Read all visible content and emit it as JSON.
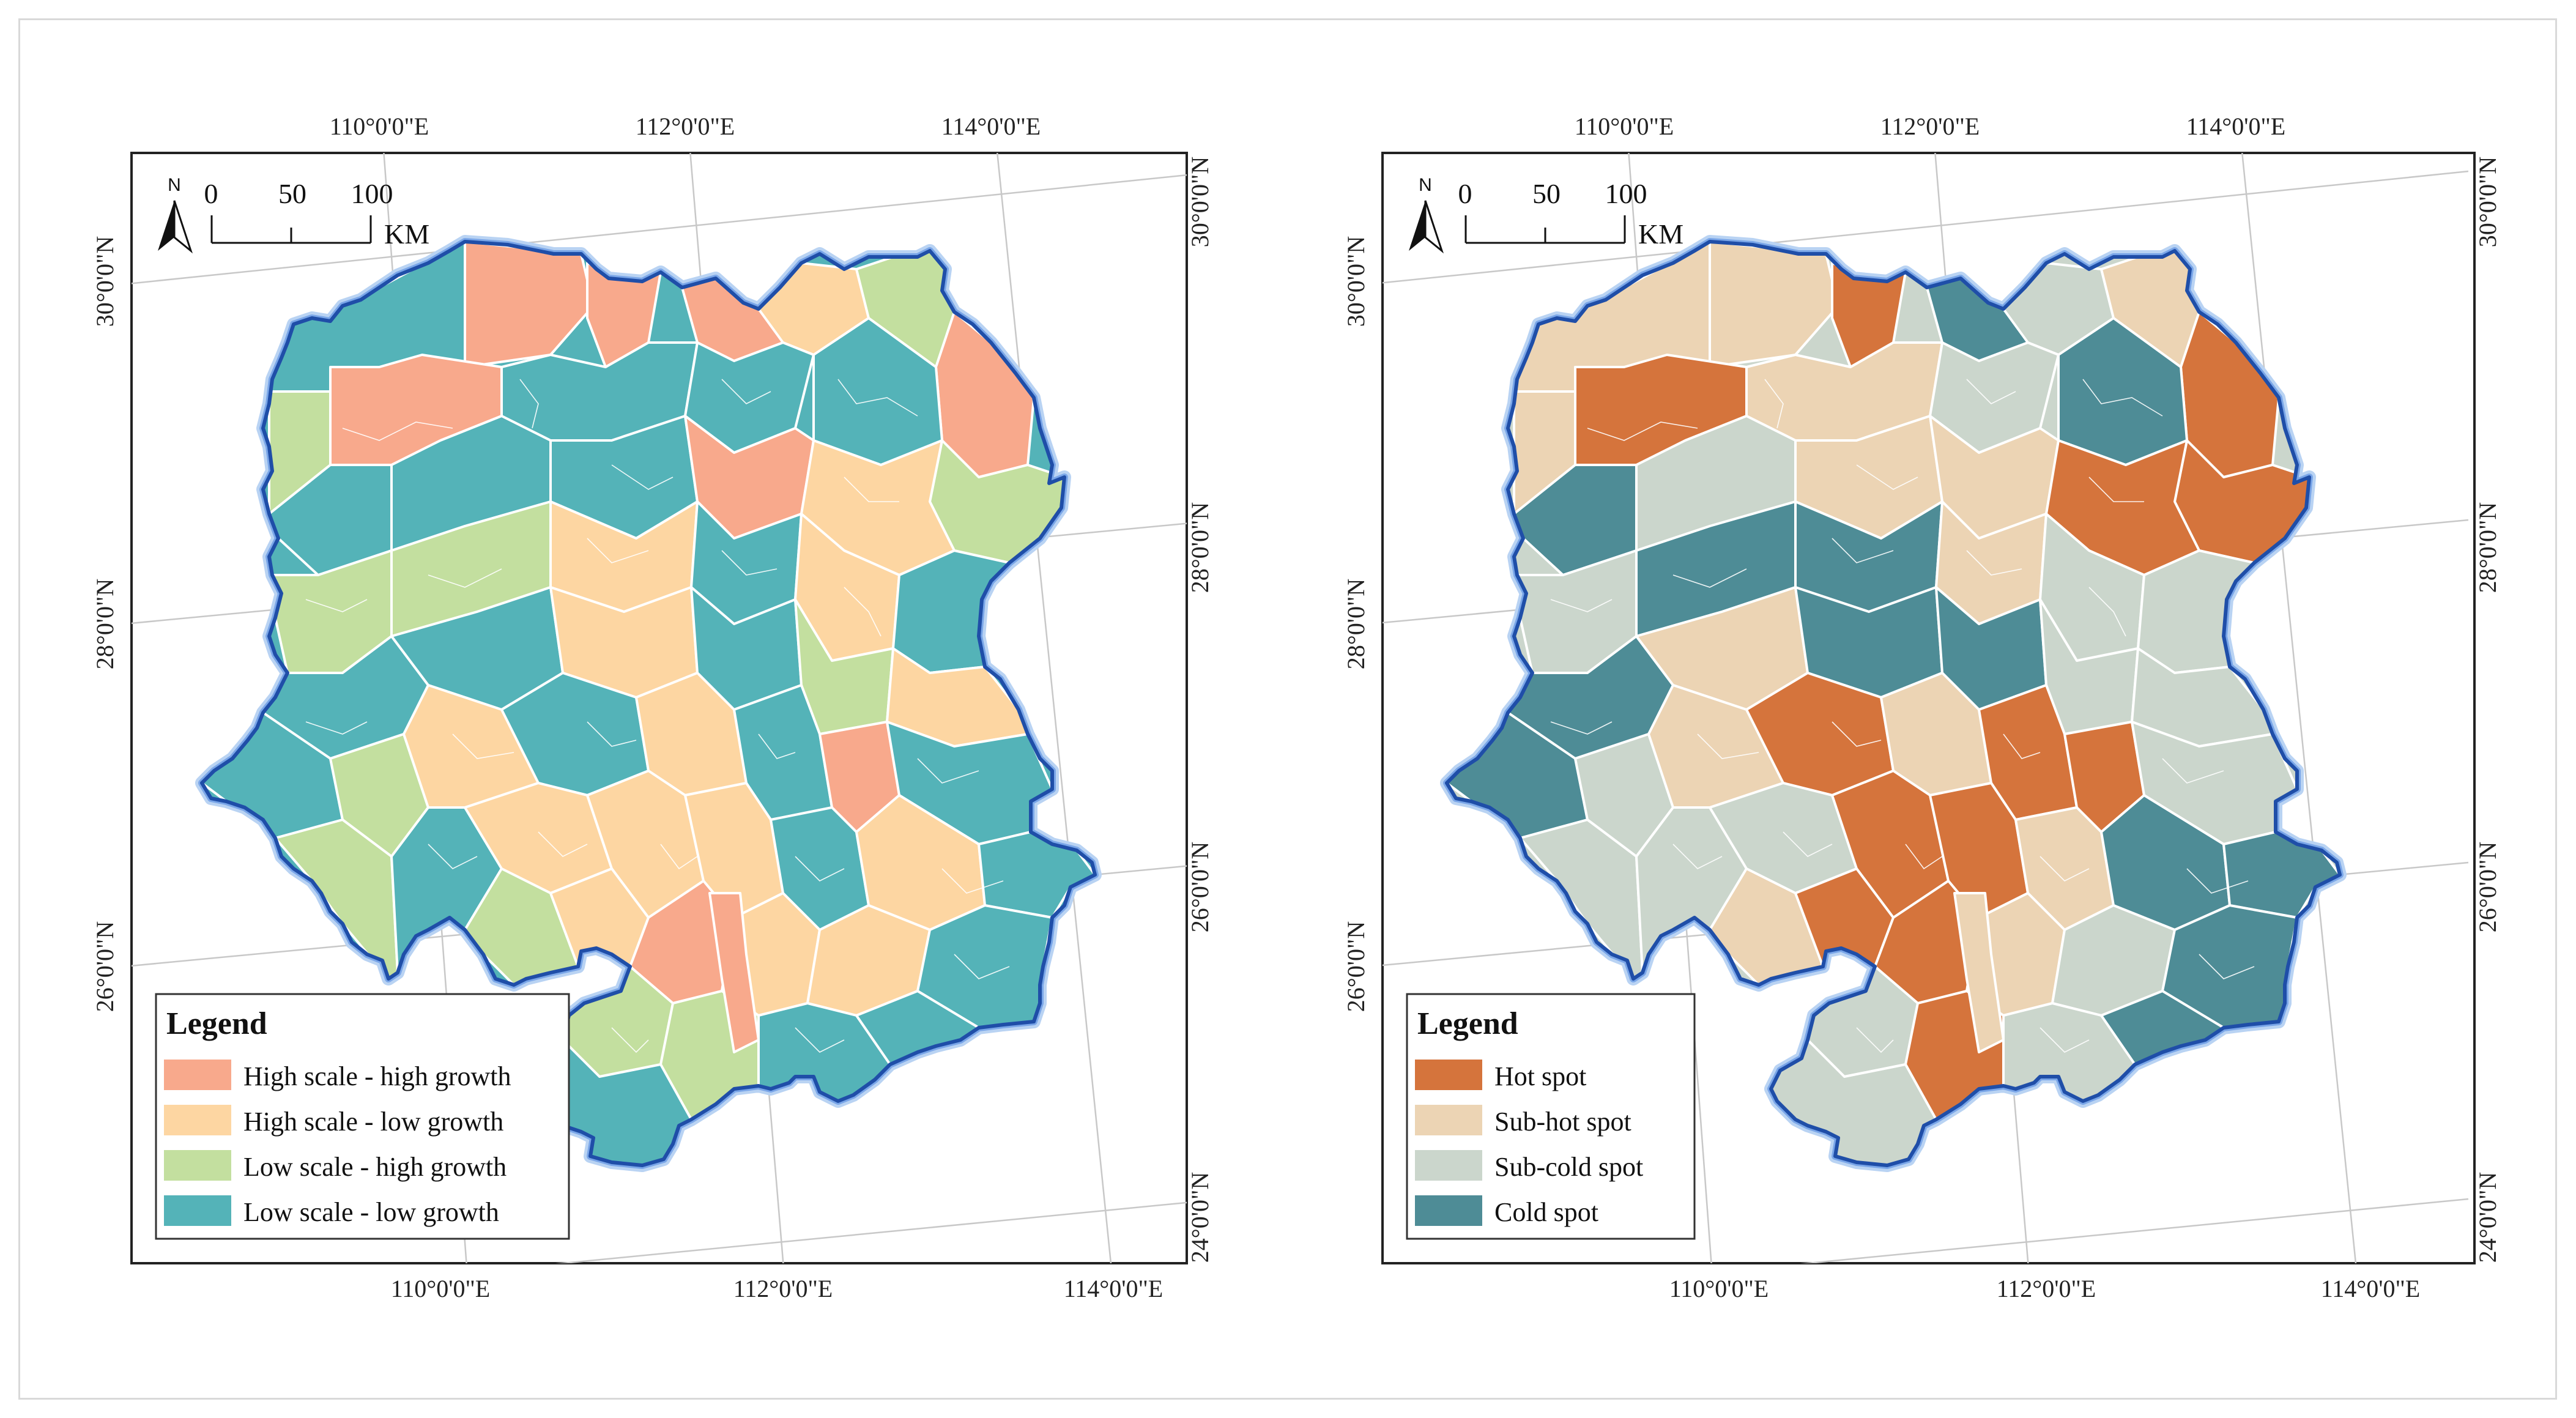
{
  "colors": {
    "left": {
      "high_high": "#f8a98c",
      "high_low": "#fdd6a2",
      "low_high": "#c3df9f",
      "low_low": "#54b3b8"
    },
    "right": {
      "hot": "#d5743c",
      "subhot": "#ecd4b4",
      "subcold": "#cbd6cc",
      "cold": "#4e8c96"
    },
    "boundary": "#1f4ea8"
  },
  "graticule": {
    "top_labels": [
      "110°0'0\"E",
      "112°0'0\"E",
      "114°0'0\"E"
    ],
    "bottom_labels": [
      "110°0'0\"E",
      "112°0'0\"E",
      "114°0'0\"E"
    ],
    "left_labels": [
      "30°0'0\"N",
      "28°0'0\"N",
      "26°0'0\"N"
    ],
    "right_labels": [
      "30°0'0\"N",
      "28°0'0\"N",
      "26°0'0\"N",
      "24°0'0\"N"
    ]
  },
  "scale_bar": {
    "ticks": [
      "0",
      "50",
      "100"
    ],
    "unit": "KM"
  },
  "north_arrow": {
    "label": "N",
    "icon": "north-arrow-icon"
  },
  "maps": [
    {
      "legend_title": "Legend",
      "legend": [
        {
          "label": "High scale - high growth",
          "color": "#f8a98c"
        },
        {
          "label": "High scale - low growth",
          "color": "#fdd6a2"
        },
        {
          "label": "Low scale - high growth",
          "color": "#c3df9f"
        },
        {
          "label": "Low scale - low growth",
          "color": "#54b3b8"
        }
      ]
    },
    {
      "legend_title": "Legend",
      "legend": [
        {
          "label": "Hot spot",
          "color": "#d5743c"
        },
        {
          "label": "Sub-hot spot",
          "color": "#ecd4b4"
        },
        {
          "label": "Sub-cold spot",
          "color": "#cbd6cc"
        },
        {
          "label": "Cold spot",
          "color": "#4e8c96"
        }
      ]
    }
  ]
}
